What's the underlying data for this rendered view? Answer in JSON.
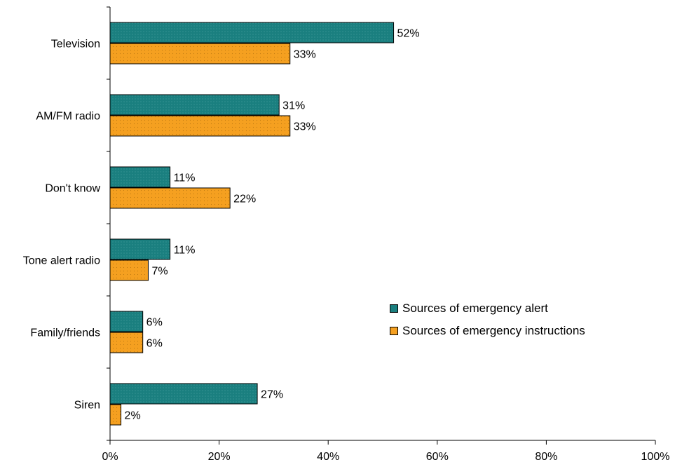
{
  "chart_data": {
    "type": "bar",
    "orientation": "horizontal",
    "categories": [
      "Television",
      "AM/FM radio",
      "Don't know",
      "Tone alert radio",
      "Family/friends",
      "Siren"
    ],
    "series": [
      {
        "name": "Sources of emergency alert",
        "color": "#1a7f7f",
        "values": [
          52,
          31,
          11,
          11,
          6,
          27
        ]
      },
      {
        "name": "Sources of emergency instructions",
        "color": "#f5a020",
        "values": [
          33,
          33,
          22,
          7,
          6,
          2
        ]
      }
    ],
    "data_labels": [
      [
        "52%",
        "31%",
        "11%",
        "11%",
        "6%",
        "27%"
      ],
      [
        "33%",
        "33%",
        "22%",
        "7%",
        "6%",
        "2%"
      ]
    ],
    "x_ticks": [
      "0%",
      "20%",
      "40%",
      "60%",
      "80%",
      "100%"
    ],
    "x_tick_values": [
      0,
      20,
      40,
      60,
      80,
      100
    ],
    "xlim": [
      0,
      100
    ],
    "grid": false,
    "legend_position": "right",
    "title": "",
    "xlabel": "",
    "ylabel": ""
  }
}
